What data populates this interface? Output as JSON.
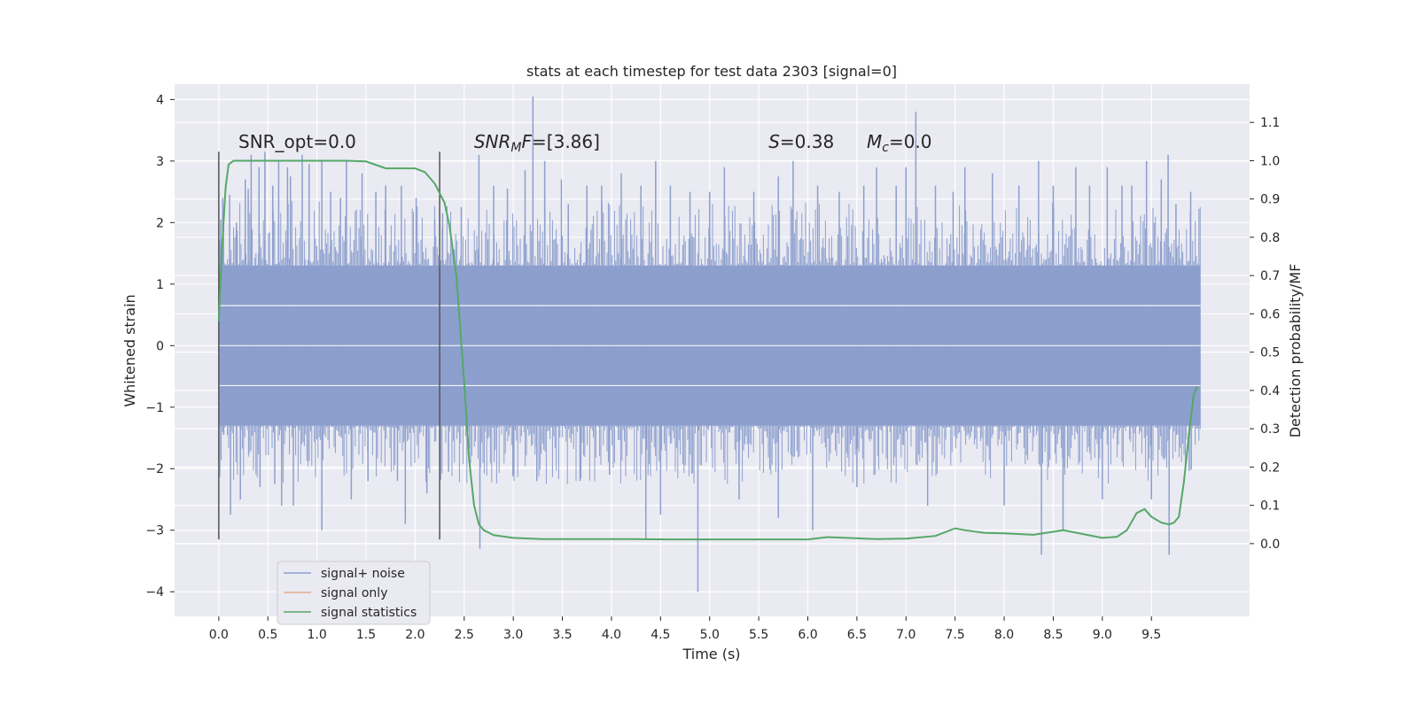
{
  "chart_data": {
    "type": "line",
    "title": "stats at each timestep for test data 2303 [signal=0]",
    "xlabel": "Time (s)",
    "ylabel": "Whitened strain",
    "y2label": "Detection probability/MF",
    "xlim": [
      -0.45,
      10.5
    ],
    "ylim": [
      -4.4,
      4.25
    ],
    "y2lim": [
      -0.19,
      1.2
    ],
    "xticks": [
      0.0,
      0.5,
      1.0,
      1.5,
      2.0,
      2.5,
      3.0,
      3.5,
      4.0,
      4.5,
      5.0,
      5.5,
      6.0,
      6.5,
      7.0,
      7.5,
      8.0,
      8.5,
      9.0,
      9.5
    ],
    "xtick_labels": [
      "0.0",
      "0.5",
      "1.0",
      "1.5",
      "2.0",
      "2.5",
      "3.0",
      "3.5",
      "4.0",
      "4.5",
      "5.0",
      "5.5",
      "6.0",
      "6.5",
      "7.0",
      "7.5",
      "8.0",
      "8.5",
      "9.0",
      "9.5"
    ],
    "yticks": [
      -4,
      -3,
      -2,
      -1,
      0,
      1,
      2,
      3,
      4
    ],
    "ytick_labels": [
      "−4",
      "−3",
      "−2",
      "−1",
      "0",
      "1",
      "2",
      "3",
      "4"
    ],
    "y2ticks": [
      0.0,
      0.1,
      0.2,
      0.3,
      0.4,
      0.5,
      0.6,
      0.7,
      0.8,
      0.9,
      1.0,
      1.1
    ],
    "y2tick_labels": [
      "0.0",
      "0.1",
      "0.2",
      "0.3",
      "0.4",
      "0.5",
      "0.6",
      "0.7",
      "0.8",
      "0.9",
      "1.0",
      "1.1"
    ],
    "grid": true,
    "legend_position": "bottom-left",
    "vlines": [
      {
        "x": 0.0,
        "y_range": [
          -3.15,
          3.15
        ]
      },
      {
        "x": 2.25,
        "y_range": [
          -3.15,
          3.15
        ]
      }
    ],
    "annotations": {
      "snr_opt": {
        "prefix": "SNR_opt=",
        "value": "0.0",
        "x": 0.2
      },
      "snr_mf": {
        "base": "SNR",
        "sub": "M",
        "mid": "F",
        "value": "=[3.86]",
        "x": 2.6
      },
      "s_stat": {
        "base": "S",
        "value": "=0.38",
        "x": 5.6
      },
      "mc": {
        "base": "M",
        "sub": "c",
        "value": "=0.0",
        "x": 6.6
      },
      "y": 3.3
    },
    "series": [
      {
        "name": "signal+ noise",
        "color": "#8c9fcd",
        "axis": "left",
        "style": "noise",
        "x_range": [
          0.0,
          10.0
        ],
        "band_level": 1.3,
        "spikes": [
          [
            0.02,
            2.05
          ],
          [
            0.04,
            2.4
          ],
          [
            0.05,
            -1.45
          ],
          [
            0.11,
            2.45
          ],
          [
            0.12,
            -2.75
          ],
          [
            0.18,
            2.0
          ],
          [
            0.22,
            -2.5
          ],
          [
            0.27,
            2.7
          ],
          [
            0.3,
            2.55
          ],
          [
            0.33,
            3.1
          ],
          [
            0.41,
            2.9
          ],
          [
            0.42,
            -2.3
          ],
          [
            0.47,
            3.15
          ],
          [
            0.55,
            2.6
          ],
          [
            0.57,
            -2.25
          ],
          [
            0.61,
            3.0
          ],
          [
            0.64,
            -2.6
          ],
          [
            0.7,
            2.9
          ],
          [
            0.73,
            2.75
          ],
          [
            0.76,
            -2.6
          ],
          [
            0.85,
            3.1
          ],
          [
            0.92,
            2.95
          ],
          [
            1.05,
            3.0
          ],
          [
            1.05,
            -3.0
          ],
          [
            1.14,
            2.5
          ],
          [
            1.24,
            2.4
          ],
          [
            1.3,
            3.0
          ],
          [
            1.35,
            -2.5
          ],
          [
            1.46,
            2.8
          ],
          [
            1.52,
            -2.2
          ],
          [
            1.6,
            2.5
          ],
          [
            1.7,
            2.6
          ],
          [
            1.82,
            -2.2
          ],
          [
            1.86,
            2.6
          ],
          [
            1.9,
            -2.9
          ],
          [
            2.01,
            2.4
          ],
          [
            2.12,
            -2.4
          ],
          [
            2.2,
            2.05
          ],
          [
            2.28,
            2.15
          ],
          [
            2.34,
            -2.05
          ],
          [
            2.47,
            2.25
          ],
          [
            2.65,
            3.1
          ],
          [
            2.66,
            -3.3
          ],
          [
            2.8,
            2.6
          ],
          [
            2.94,
            2.55
          ],
          [
            3.0,
            -2.1
          ],
          [
            3.12,
            2.85
          ],
          [
            3.2,
            4.05
          ],
          [
            3.24,
            -2.2
          ],
          [
            3.32,
            3.0
          ],
          [
            3.49,
            2.7
          ],
          [
            3.56,
            2.3
          ],
          [
            3.68,
            -2.2
          ],
          [
            3.75,
            2.6
          ],
          [
            3.9,
            2.6
          ],
          [
            3.98,
            -2.1
          ],
          [
            4.1,
            2.8
          ],
          [
            4.3,
            2.6
          ],
          [
            4.35,
            -3.15
          ],
          [
            4.45,
            3.0
          ],
          [
            4.5,
            -2.75
          ],
          [
            4.6,
            2.6
          ],
          [
            4.8,
            2.5
          ],
          [
            4.88,
            -4.0
          ],
          [
            5.0,
            2.5
          ],
          [
            5.15,
            2.9
          ],
          [
            5.3,
            -2.5
          ],
          [
            5.45,
            2.5
          ],
          [
            5.7,
            2.75
          ],
          [
            5.7,
            -2.8
          ],
          [
            5.85,
            3.0
          ],
          [
            6.05,
            -3.0
          ],
          [
            6.1,
            2.6
          ],
          [
            6.32,
            2.5
          ],
          [
            6.5,
            -2.3
          ],
          [
            6.57,
            2.6
          ],
          [
            6.7,
            2.9
          ],
          [
            6.9,
            2.6
          ],
          [
            7.0,
            2.9
          ],
          [
            7.1,
            3.8
          ],
          [
            7.22,
            -2.6
          ],
          [
            7.3,
            2.6
          ],
          [
            7.48,
            2.5
          ],
          [
            7.6,
            2.9
          ],
          [
            7.88,
            2.8
          ],
          [
            8.0,
            -2.6
          ],
          [
            8.15,
            2.6
          ],
          [
            8.35,
            3.0
          ],
          [
            8.38,
            -3.4
          ],
          [
            8.5,
            2.6
          ],
          [
            8.6,
            -3.0
          ],
          [
            8.73,
            2.9
          ],
          [
            8.87,
            2.6
          ],
          [
            9.0,
            -2.5
          ],
          [
            9.05,
            2.9
          ],
          [
            9.2,
            2.6
          ],
          [
            9.3,
            2.6
          ],
          [
            9.45,
            3.0
          ],
          [
            9.5,
            -2.5
          ],
          [
            9.6,
            2.7
          ],
          [
            9.67,
            3.1
          ],
          [
            9.68,
            -3.4
          ],
          [
            9.75,
            2.3
          ],
          [
            9.9,
            2.5
          ]
        ]
      },
      {
        "name": "signal only",
        "color": "#e8a98f",
        "axis": "left",
        "style": "line",
        "x": [],
        "y": []
      },
      {
        "name": "signal statistics",
        "color": "#55a868",
        "axis": "right",
        "style": "line",
        "x": [
          0.0,
          0.03,
          0.07,
          0.1,
          0.15,
          0.2,
          0.3,
          0.5,
          0.8,
          1.0,
          1.3,
          1.5,
          1.7,
          1.9,
          2.0,
          2.1,
          2.2,
          2.3,
          2.35,
          2.42,
          2.5,
          2.55,
          2.6,
          2.65,
          2.7,
          2.8,
          3.0,
          3.3,
          3.7,
          4.2,
          4.6,
          5.0,
          5.5,
          6.0,
          6.2,
          6.4,
          6.7,
          7.0,
          7.3,
          7.5,
          7.6,
          7.8,
          8.0,
          8.3,
          8.6,
          8.8,
          9.0,
          9.15,
          9.25,
          9.35,
          9.43,
          9.5,
          9.6,
          9.68,
          9.73,
          9.78,
          9.83,
          9.88,
          9.93,
          9.97
        ],
        "y": [
          0.58,
          0.76,
          0.93,
          0.99,
          1.0,
          1.0,
          1.0,
          1.0,
          1.0,
          1.0,
          1.0,
          0.998,
          0.98,
          0.98,
          0.98,
          0.97,
          0.94,
          0.89,
          0.83,
          0.7,
          0.42,
          0.22,
          0.1,
          0.05,
          0.035,
          0.022,
          0.015,
          0.012,
          0.012,
          0.012,
          0.011,
          0.011,
          0.011,
          0.011,
          0.017,
          0.015,
          0.012,
          0.013,
          0.02,
          0.04,
          0.035,
          0.028,
          0.027,
          0.023,
          0.035,
          0.025,
          0.015,
          0.018,
          0.035,
          0.08,
          0.09,
          0.07,
          0.055,
          0.05,
          0.055,
          0.07,
          0.16,
          0.28,
          0.39,
          0.41
        ]
      }
    ]
  }
}
